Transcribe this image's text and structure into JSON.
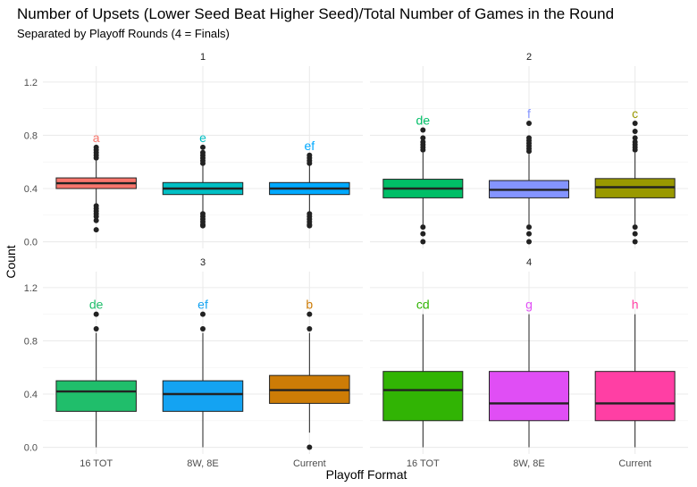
{
  "chart_data": {
    "type": "boxplot",
    "title": "Number of Upsets (Lower Seed Beat Higher Seed)/Total Number of Games in the Round",
    "subtitle": "Separated by Playoff Rounds (4 = Finals)",
    "xlabel": "Playoff Format",
    "ylabel": "Count",
    "ylim": [
      -0.05,
      1.32
    ],
    "yticks": [
      0.0,
      0.4,
      0.8,
      1.2
    ],
    "ytick_labels": [
      "0.0",
      "0.4",
      "0.8",
      "1.2"
    ],
    "grid": true,
    "categories": [
      "16 TOT",
      "8W, 8E",
      "Current"
    ],
    "panels": [
      {
        "label": "1",
        "boxes": [
          {
            "category": "16 TOT",
            "color": "#F8766D",
            "letter": "a",
            "q1": 0.4,
            "median": 0.44,
            "q3": 0.48,
            "whisker_low": 0.28,
            "whisker_high": 0.61,
            "outliers_low": [
              0.27,
              0.25,
              0.23,
              0.21,
              0.19,
              0.16,
              0.09
            ],
            "outliers_high": [
              0.63,
              0.65,
              0.67,
              0.69,
              0.71
            ]
          },
          {
            "category": "8W, 8E",
            "color": "#00BFC4",
            "letter": "e",
            "q1": 0.355,
            "median": 0.4,
            "q3": 0.445,
            "whisker_low": 0.22,
            "whisker_high": 0.575,
            "outliers_low": [
              0.21,
              0.19,
              0.17,
              0.15,
              0.13,
              0.12
            ],
            "outliers_high": [
              0.59,
              0.61,
              0.63,
              0.65,
              0.67,
              0.71
            ]
          },
          {
            "category": "Current",
            "color": "#00A9FF",
            "letter": "ef",
            "q1": 0.355,
            "median": 0.4,
            "q3": 0.445,
            "whisker_low": 0.22,
            "whisker_high": 0.575,
            "outliers_low": [
              0.21,
              0.19,
              0.17,
              0.15,
              0.13,
              0.12
            ],
            "outliers_high": [
              0.59,
              0.61,
              0.63,
              0.65
            ]
          }
        ]
      },
      {
        "label": "2",
        "boxes": [
          {
            "category": "16 TOT",
            "color": "#00BE67",
            "letter": "de",
            "q1": 0.33,
            "median": 0.4,
            "q3": 0.47,
            "whisker_low": 0.13,
            "whisker_high": 0.67,
            "outliers_low": [
              0.11,
              0.06,
              0.0
            ],
            "outliers_high": [
              0.69,
              0.71,
              0.73,
              0.75,
              0.78,
              0.84
            ]
          },
          {
            "category": "8W, 8E",
            "color": "#8494FF",
            "letter": "f",
            "q1": 0.33,
            "median": 0.39,
            "q3": 0.46,
            "whisker_low": 0.13,
            "whisker_high": 0.66,
            "outliers_low": [
              0.11,
              0.06,
              0.0
            ],
            "outliers_high": [
              0.68,
              0.7,
              0.72,
              0.74,
              0.76,
              0.78,
              0.89
            ]
          },
          {
            "category": "Current",
            "color": "#999900",
            "letter": "c",
            "q1": 0.33,
            "median": 0.41,
            "q3": 0.475,
            "whisker_low": 0.13,
            "whisker_high": 0.67,
            "outliers_low": [
              0.11,
              0.06,
              0.0
            ],
            "outliers_high": [
              0.69,
              0.71,
              0.73,
              0.75,
              0.78,
              0.83,
              0.89
            ]
          }
        ]
      },
      {
        "label": "3",
        "boxes": [
          {
            "category": "16 TOT",
            "color": "#20BE6B",
            "letter": "de",
            "q1": 0.27,
            "median": 0.42,
            "q3": 0.5,
            "whisker_low": 0.0,
            "whisker_high": 0.86,
            "outliers_low": [],
            "outliers_high": [
              0.89,
              1.0
            ]
          },
          {
            "category": "8W, 8E",
            "color": "#14A3F2",
            "letter": "ef",
            "q1": 0.27,
            "median": 0.4,
            "q3": 0.5,
            "whisker_low": 0.0,
            "whisker_high": 0.86,
            "outliers_low": [],
            "outliers_high": [
              0.89,
              1.0
            ]
          },
          {
            "category": "Current",
            "color": "#CD7C06",
            "letter": "b",
            "q1": 0.33,
            "median": 0.43,
            "q3": 0.54,
            "whisker_low": 0.11,
            "whisker_high": 0.86,
            "outliers_low": [
              0.0
            ],
            "outliers_high": [
              0.89,
              1.0
            ]
          }
        ]
      },
      {
        "label": "4",
        "boxes": [
          {
            "category": "16 TOT",
            "color": "#31B404",
            "letter": "cd",
            "q1": 0.2,
            "median": 0.43,
            "q3": 0.57,
            "whisker_low": 0.0,
            "whisker_high": 1.0,
            "outliers_low": [],
            "outliers_high": []
          },
          {
            "category": "8W, 8E",
            "color": "#E04EF5",
            "letter": "g",
            "q1": 0.2,
            "median": 0.33,
            "q3": 0.57,
            "whisker_low": 0.0,
            "whisker_high": 1.0,
            "outliers_low": [],
            "outliers_high": []
          },
          {
            "category": "Current",
            "color": "#FF3FA4",
            "letter": "h",
            "q1": 0.2,
            "median": 0.33,
            "q3": 0.57,
            "whisker_low": 0.0,
            "whisker_high": 1.0,
            "outliers_low": [],
            "outliers_high": []
          }
        ]
      }
    ]
  }
}
